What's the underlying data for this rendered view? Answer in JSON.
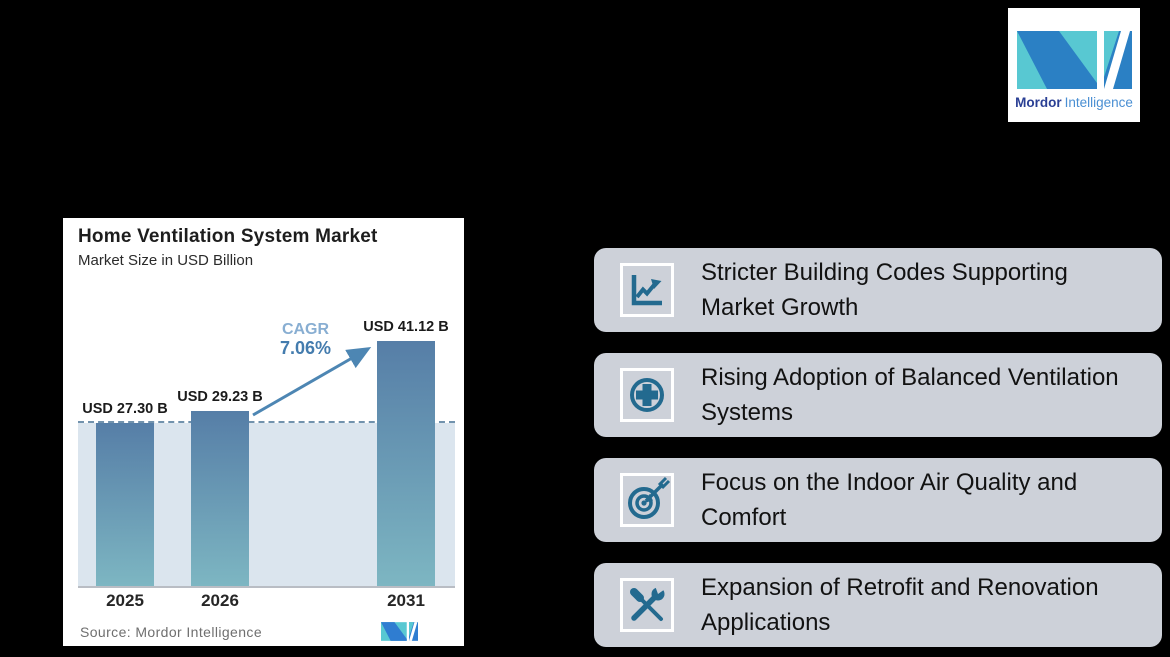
{
  "brand": {
    "name_bold": "Mordor",
    "name_light": "Intelligence"
  },
  "chart_card": {
    "source_label": "Source:",
    "source_value": "Mordor Intelligence"
  },
  "chart_data": {
    "type": "bar",
    "title": "Home Ventilation System Market",
    "subtitle": "Market Size in USD Billion",
    "categories": [
      "2025",
      "2026",
      "2031"
    ],
    "values": [
      27.3,
      29.23,
      41.12
    ],
    "value_labels": [
      "USD 27.30 B",
      "USD 29.23 B",
      "USD 41.12 B"
    ],
    "cagr_label": "CAGR",
    "cagr_value": "7.06%",
    "arrow": {
      "from_category": "2026",
      "to_category": "2031"
    },
    "baseline_at_value": 27.3,
    "ylim": [
      0,
      45
    ],
    "grid": false,
    "legend": false
  },
  "drivers": [
    {
      "icon": "chart-growth-icon",
      "lines": [
        "Stricter Building Codes Supporting",
        "Market Growth"
      ]
    },
    {
      "icon": "plus-circle-icon",
      "lines": [
        "Rising Adoption of Balanced Ventilation",
        "Systems"
      ]
    },
    {
      "icon": "target-icon",
      "lines": [
        "Focus on the Indoor Air Quality and",
        "Comfort"
      ]
    },
    {
      "icon": "tools-icon",
      "lines": [
        "Expansion of Retrofit and Renovation",
        "Applications"
      ]
    }
  ],
  "colors": {
    "background": "#000000",
    "card": "#ffffff",
    "driver_box": "#cdd1d9",
    "icon_teal": "#236a8f",
    "plot_bg": "#dbe5ee",
    "dashed_line": "#7192ad",
    "bar_gradient_top": "#567ea7",
    "bar_gradient_bottom": "#7db6c2",
    "arrow_blue": "#4d86b3",
    "cagr_label_color": "#88aed2",
    "cagr_value_color": "#447cae",
    "logo_teal": "#58c8d2",
    "logo_blue": "#2b80c4",
    "source_text": "#6f6f6f"
  }
}
